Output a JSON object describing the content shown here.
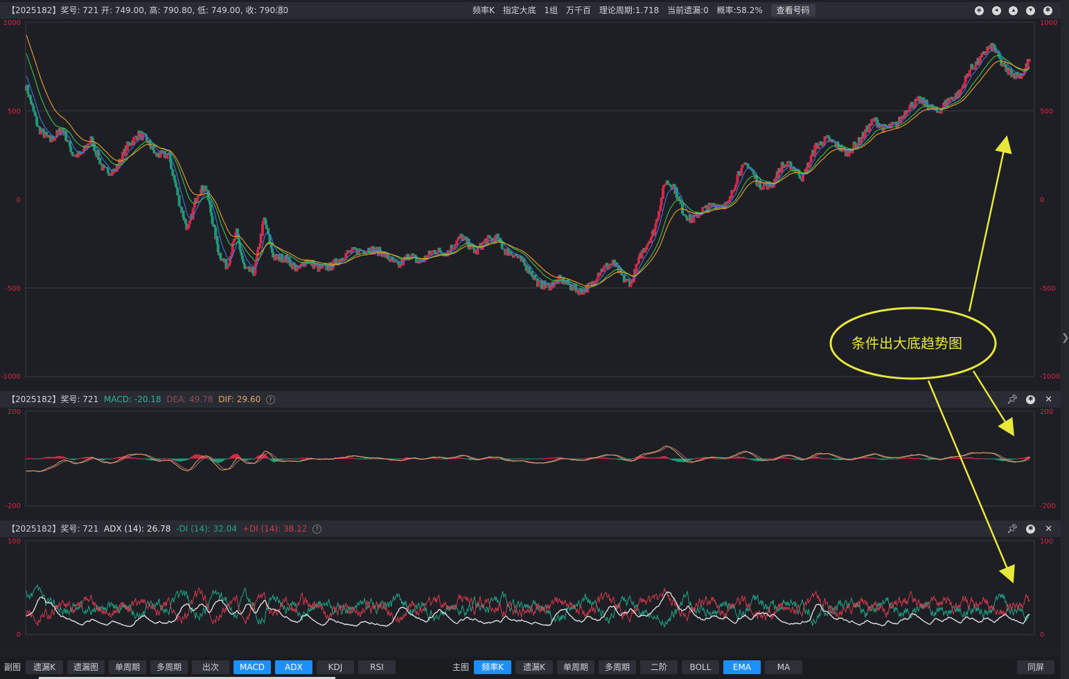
{
  "main_header": {
    "info": "【2025182】奖号: 721  开: 749.00, 高: 790.80, 低: 749.00, 收: 790.80",
    "mid_items": [
      "频率K",
      "指定大底",
      "1组",
      "万千百",
      "理论周期:1.718",
      "当前遗漏:0",
      "概率:58.2%"
    ],
    "query_button": "查看号码",
    "icons": [
      "compass-icon",
      "back-icon",
      "up-icon",
      "down-icon",
      "settings-icon"
    ]
  },
  "macd_header": {
    "prefix": "【2025182】奖号: 721",
    "macd": "MACD: -20.18",
    "dea": "DEA: 49.78",
    "dif": "DIF: 29.60",
    "colors": {
      "macd": "#2fb39b",
      "dea": "#8e4d58",
      "dif": "#e0a86a"
    }
  },
  "adx_header": {
    "prefix": "【2025182】奖号: 721",
    "adx": "ADX (14): 26.78",
    "mdi": "-DI (14): 32.04",
    "pdi": "+DI (14): 38.12",
    "colors": {
      "adx": "#e6e6e6",
      "mdi": "#1fa787",
      "pdi": "#d43a4f"
    }
  },
  "annotation": {
    "text": "条件出大底趋势图",
    "color": "#e8e83a"
  },
  "bottom_bar": {
    "left_label": "副图",
    "left_buttons": [
      {
        "label": "遗漏K",
        "on": false
      },
      {
        "label": "遗漏图",
        "on": false
      },
      {
        "label": "单周期",
        "on": false
      },
      {
        "label": "多周期",
        "on": false
      },
      {
        "label": "出次",
        "on": false
      },
      {
        "label": "MACD",
        "on": true
      },
      {
        "label": "ADX",
        "on": true
      },
      {
        "label": "KDJ",
        "on": false
      },
      {
        "label": "RSI",
        "on": false
      }
    ],
    "main_label": "主图",
    "main_buttons": [
      {
        "label": "频率K",
        "on": true
      },
      {
        "label": "遗漏K",
        "on": false
      },
      {
        "label": "单周期",
        "on": false
      },
      {
        "label": "多周期",
        "on": false
      },
      {
        "label": "二阶",
        "on": false
      },
      {
        "label": "BOLL",
        "on": false
      },
      {
        "label": "EMA",
        "on": true
      },
      {
        "label": "MA",
        "on": false
      }
    ],
    "right_button": "同屏"
  },
  "chart_data": [
    {
      "type": "candlestick",
      "panel": "main",
      "ylim": [
        -1000,
        1000
      ],
      "yticks": [
        "1000",
        "500",
        "0",
        "-500",
        "-1000"
      ],
      "grid": true,
      "up_color": "#d8264b",
      "down_color": "#1f9a78",
      "ema_colors": [
        "#3a78e0",
        "#3cc24d",
        "#f0a030"
      ],
      "close_path": [
        [
          0,
          640
        ],
        [
          15,
          400
        ],
        [
          30,
          330
        ],
        [
          45,
          400
        ],
        [
          58,
          250
        ],
        [
          68,
          250
        ],
        [
          80,
          340
        ],
        [
          96,
          160
        ],
        [
          110,
          160
        ],
        [
          125,
          300
        ],
        [
          140,
          370
        ],
        [
          150,
          330
        ],
        [
          160,
          250
        ],
        [
          176,
          250
        ],
        [
          190,
          -30
        ],
        [
          200,
          -180
        ],
        [
          212,
          40
        ],
        [
          222,
          70
        ],
        [
          238,
          -300
        ],
        [
          248,
          -380
        ],
        [
          260,
          -190
        ],
        [
          270,
          -400
        ],
        [
          282,
          -410
        ],
        [
          294,
          -110
        ],
        [
          306,
          -330
        ],
        [
          320,
          -330
        ],
        [
          336,
          -400
        ],
        [
          346,
          -340
        ],
        [
          362,
          -390
        ],
        [
          376,
          -380
        ],
        [
          398,
          -300
        ],
        [
          424,
          -280
        ],
        [
          440,
          -300
        ],
        [
          460,
          -380
        ],
        [
          474,
          -310
        ],
        [
          486,
          -360
        ],
        [
          504,
          -290
        ],
        [
          520,
          -300
        ],
        [
          538,
          -210
        ],
        [
          556,
          -300
        ],
        [
          568,
          -230
        ],
        [
          582,
          -220
        ],
        [
          592,
          -290
        ],
        [
          604,
          -310
        ],
        [
          622,
          -400
        ],
        [
          634,
          -480
        ],
        [
          646,
          -490
        ],
        [
          660,
          -450
        ],
        [
          676,
          -500
        ],
        [
          686,
          -520
        ],
        [
          700,
          -480
        ],
        [
          706,
          -420
        ],
        [
          716,
          -380
        ],
        [
          726,
          -360
        ],
        [
          740,
          -460
        ],
        [
          748,
          -470
        ],
        [
          760,
          -310
        ],
        [
          776,
          -180
        ],
        [
          790,
          100
        ],
        [
          800,
          80
        ],
        [
          812,
          -70
        ],
        [
          822,
          -120
        ],
        [
          836,
          -60
        ],
        [
          852,
          -30
        ],
        [
          868,
          -30
        ],
        [
          880,
          150
        ],
        [
          892,
          200
        ],
        [
          906,
          80
        ],
        [
          922,
          80
        ],
        [
          934,
          190
        ],
        [
          946,
          190
        ],
        [
          960,
          120
        ],
        [
          976,
          300
        ],
        [
          990,
          340
        ],
        [
          1004,
          300
        ],
        [
          1014,
          260
        ],
        [
          1030,
          330
        ],
        [
          1048,
          450
        ],
        [
          1060,
          400
        ],
        [
          1076,
          420
        ],
        [
          1090,
          520
        ],
        [
          1104,
          560
        ],
        [
          1118,
          520
        ],
        [
          1126,
          490
        ],
        [
          1140,
          560
        ],
        [
          1154,
          600
        ],
        [
          1166,
          730
        ],
        [
          1178,
          780
        ],
        [
          1188,
          850
        ],
        [
          1196,
          860
        ],
        [
          1206,
          760
        ],
        [
          1212,
          730
        ],
        [
          1224,
          700
        ],
        [
          1232,
          710
        ],
        [
          1240,
          790
        ]
      ]
    },
    {
      "type": "line+bar",
      "panel": "macd",
      "ylim": [
        -200,
        200
      ],
      "yticks": [
        "200",
        "-200"
      ],
      "series": [
        {
          "name": "MACD"
        },
        {
          "name": "DEA"
        },
        {
          "name": "DIF"
        }
      ]
    },
    {
      "type": "line",
      "panel": "adx",
      "ylim": [
        0,
        100
      ],
      "yticks": [
        "100",
        "0"
      ],
      "series": [
        {
          "name": "ADX (14)"
        },
        {
          "name": "-DI (14)"
        },
        {
          "name": "+DI (14)"
        }
      ]
    }
  ]
}
